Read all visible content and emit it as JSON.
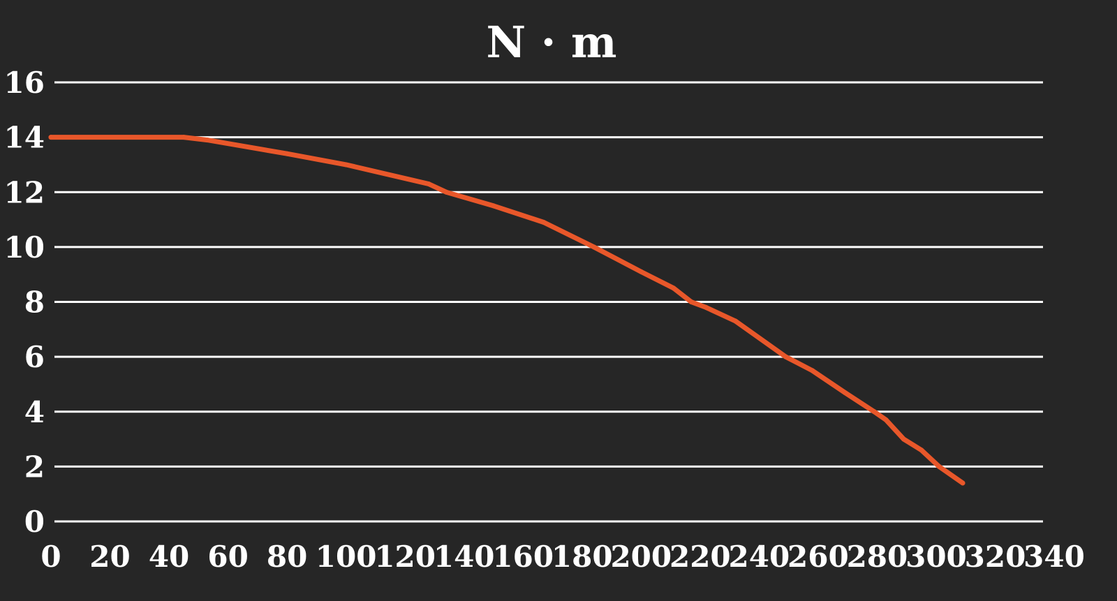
{
  "chart_data": {
    "type": "line",
    "title": "N · m",
    "xlabel": "",
    "ylabel": "",
    "xlim": [
      0,
      340
    ],
    "ylim": [
      0,
      16
    ],
    "x_ticks": [
      "0",
      "20",
      "40",
      "60",
      "80",
      "100",
      "120",
      "140",
      "160",
      "180",
      "200",
      "220",
      "240",
      "260",
      "280",
      "300",
      "320",
      "340"
    ],
    "y_ticks": [
      "0",
      "2",
      "4",
      "6",
      "8",
      "10",
      "12",
      "14",
      "16"
    ],
    "grid": "horizontal",
    "colors": {
      "background": "#262626",
      "line": "#e8572a",
      "grid": "#ffffff"
    },
    "series": [
      {
        "x": [
          0,
          45,
          53,
          80,
          100,
          128,
          134,
          150,
          167,
          184,
          200,
          211,
          217,
          222,
          232,
          249,
          258,
          269,
          279,
          283,
          289,
          295,
          301,
          309
        ],
        "y": [
          14,
          14,
          13.9,
          13.4,
          13.0,
          12.3,
          12.0,
          11.5,
          10.9,
          10.0,
          9.1,
          8.5,
          8.0,
          7.8,
          7.3,
          6.0,
          5.5,
          4.7,
          4.0,
          3.7,
          3.0,
          2.6,
          2.0,
          1.4
        ]
      }
    ]
  }
}
